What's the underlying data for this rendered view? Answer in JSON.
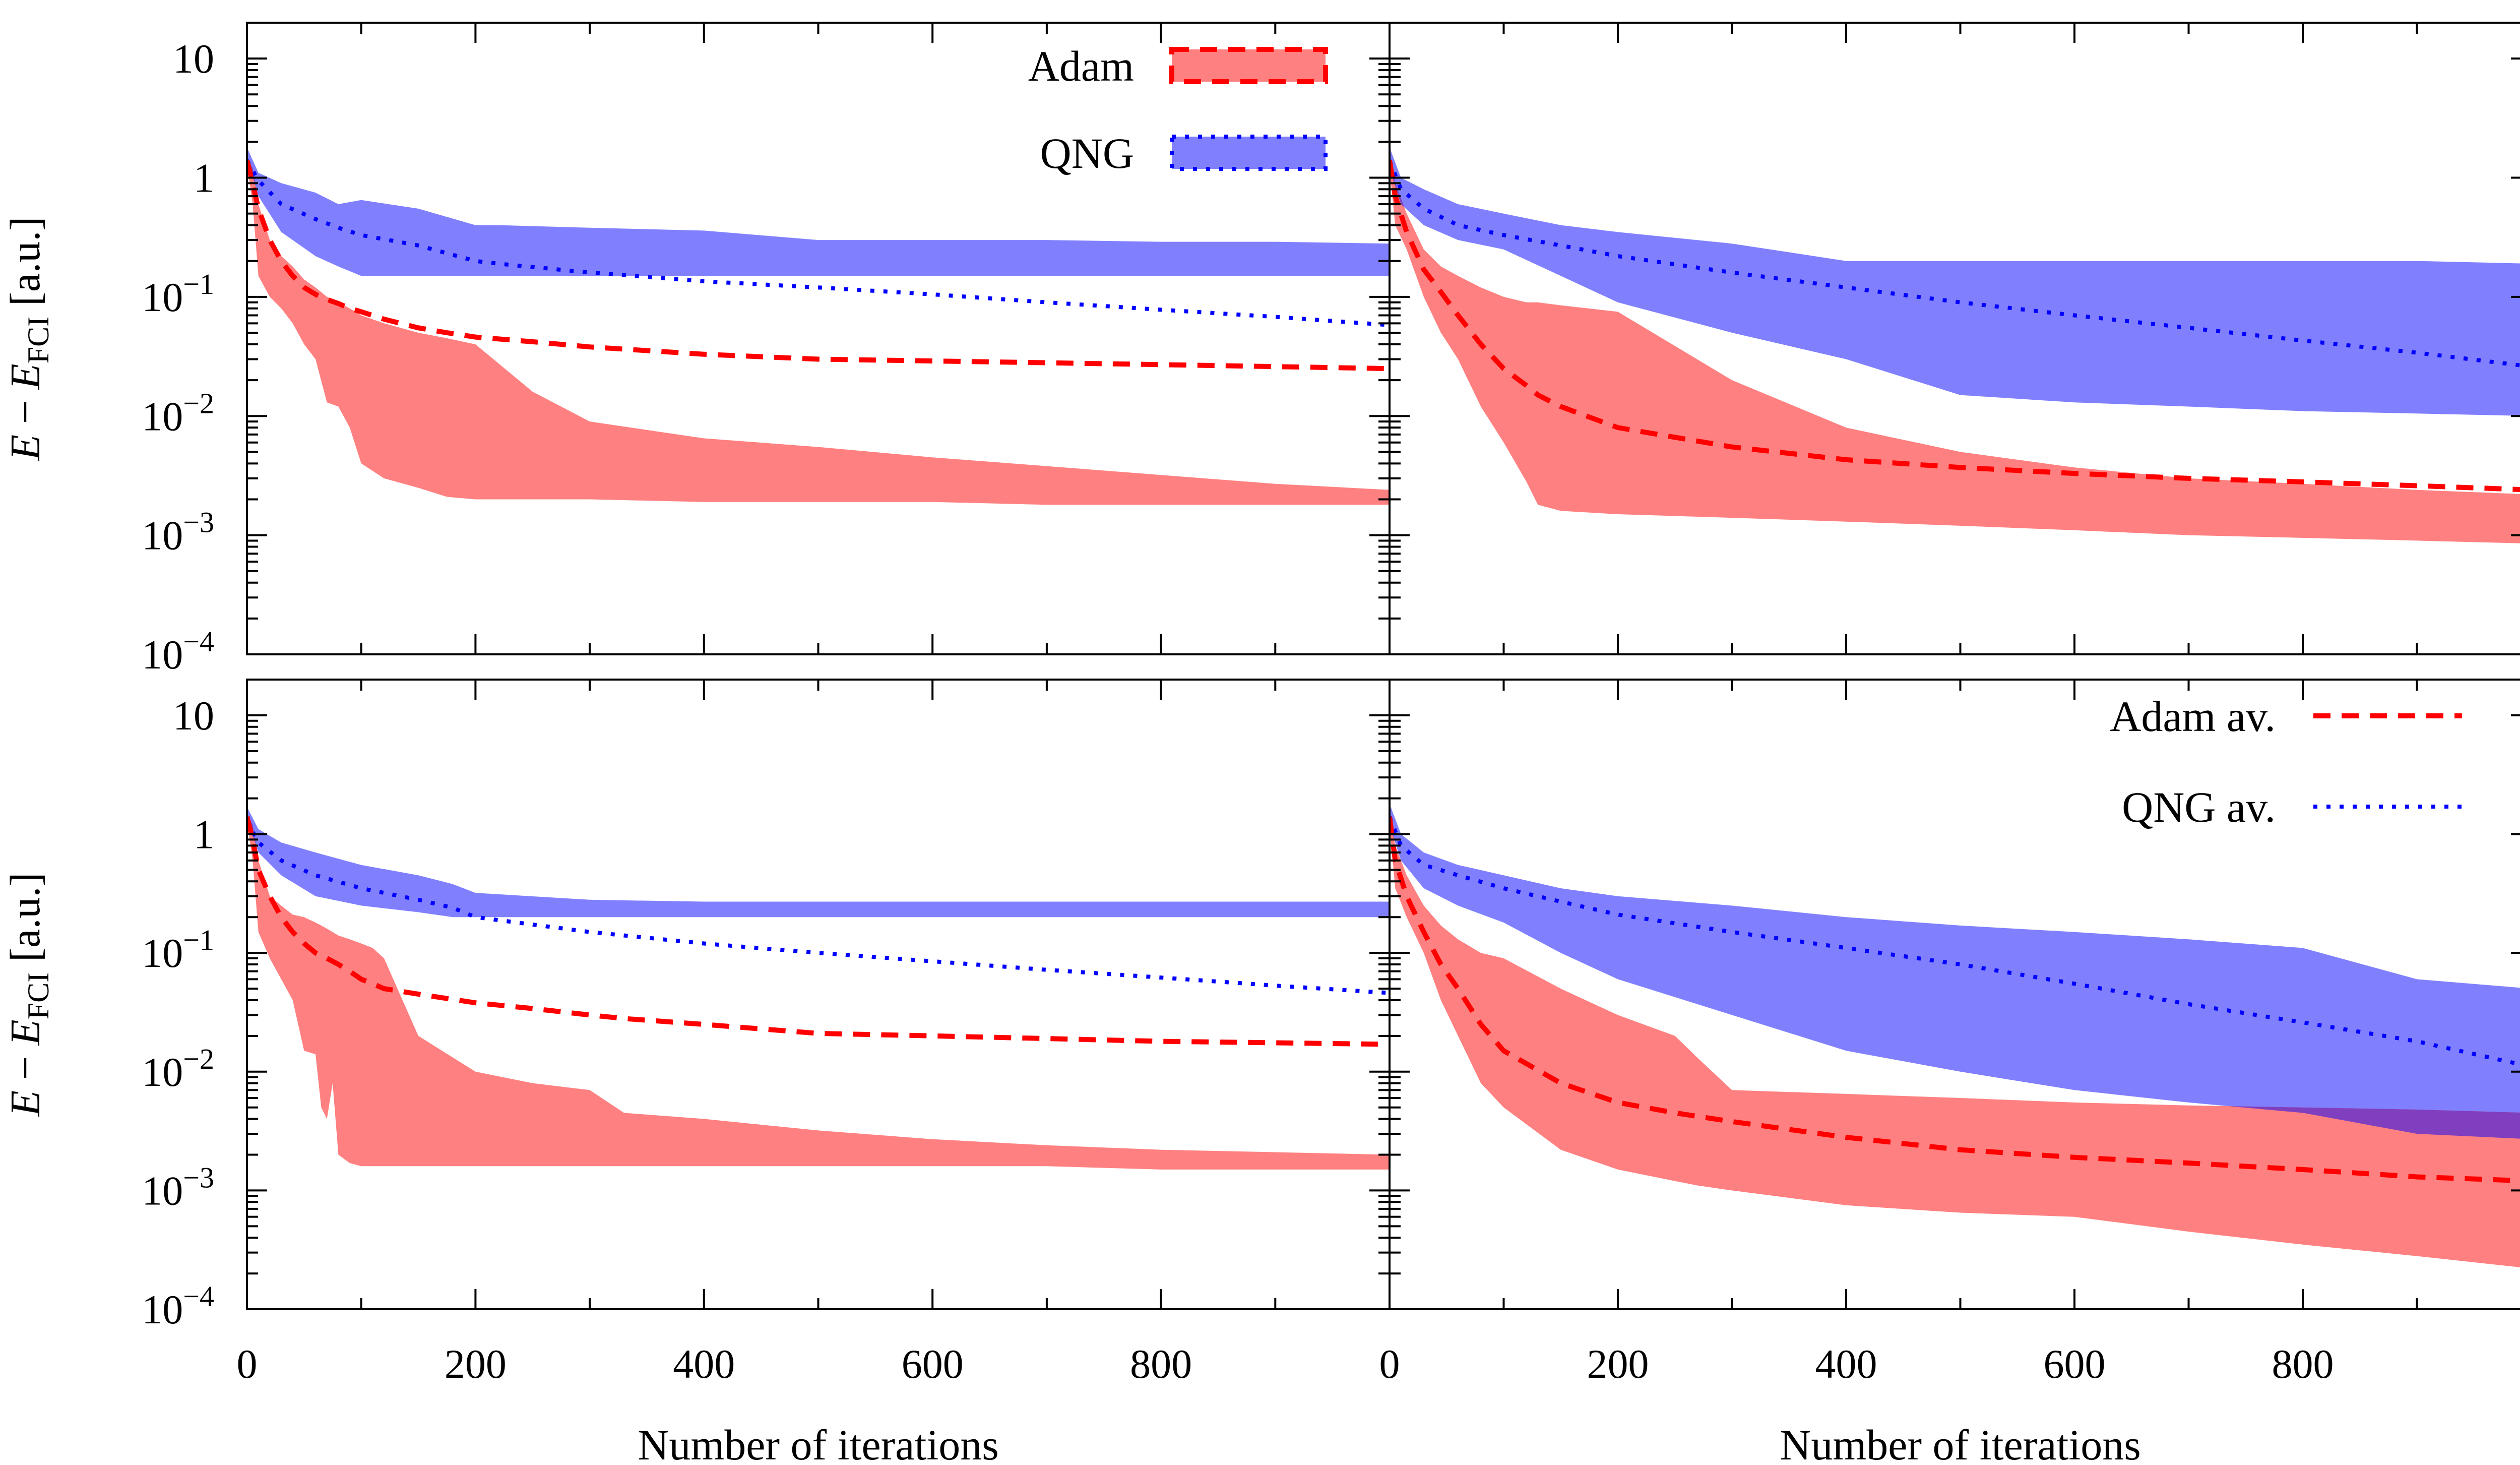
{
  "colors": {
    "adam": "#ff0000",
    "adam_band": "#ff8080",
    "qng": "#0000ff",
    "qng_band": "#8080ff",
    "overlap": "#7f3fbf",
    "axis": "#000000"
  },
  "chart_data": {
    "type": "area",
    "layout": "2x2 panels with shared axes",
    "xlabel": "Number of iterations",
    "ylabel": "E − E_FCI [a.u.]",
    "ylabel_parts": {
      "E": "E",
      "minus": " − ",
      "sub_E": "E",
      "sub": "FCI",
      "unit": " [a.u.]"
    },
    "yscale": "log",
    "ylim": [
      0.0001,
      20
    ],
    "xlim": [
      0,
      1000
    ],
    "x_ticks": [
      0,
      200,
      400,
      600,
      800
    ],
    "x_tick_labels": [
      "0",
      "200",
      "400",
      "600",
      "800"
    ],
    "y_ticks": [
      {
        "value": 10,
        "base": "10",
        "exp": ""
      },
      {
        "value": 1,
        "base": "1",
        "exp": ""
      },
      {
        "value": 0.1,
        "base": "10",
        "exp": "−1"
      },
      {
        "value": 0.01,
        "base": "10",
        "exp": "−2"
      },
      {
        "value": 0.001,
        "base": "10",
        "exp": "−3"
      },
      {
        "value": 0.0001,
        "base": "10",
        "exp": "−4"
      }
    ],
    "legends": [
      {
        "panel": 0,
        "placement": "top-right",
        "style": "band",
        "entries": [
          "Adam",
          "QNG"
        ]
      },
      {
        "panel": 3,
        "placement": "top-right",
        "style": "line",
        "entries": [
          "Adam av.",
          "QNG av."
        ]
      }
    ],
    "panels": [
      {
        "position": "top-left",
        "series": [
          {
            "name": "QNG",
            "x": [
              0,
              10,
              30,
              60,
              80,
              100,
              150,
              200,
              220,
              300,
              400,
              500,
              600,
              700,
              800,
              900,
              1000
            ],
            "upper": [
              1.8,
              1.1,
              0.9,
              0.75,
              0.6,
              0.65,
              0.55,
              0.4,
              0.4,
              0.38,
              0.36,
              0.3,
              0.3,
              0.3,
              0.29,
              0.29,
              0.28
            ],
            "lower": [
              1.5,
              0.7,
              0.35,
              0.22,
              0.18,
              0.15,
              0.15,
              0.15,
              0.15,
              0.15,
              0.15,
              0.15,
              0.15,
              0.15,
              0.15,
              0.15,
              0.15
            ],
            "mean": [
              1.4,
              0.95,
              0.6,
              0.45,
              0.38,
              0.33,
              0.27,
              0.2,
              0.19,
              0.16,
              0.135,
              0.12,
              0.105,
              0.09,
              0.078,
              0.068,
              0.058
            ]
          },
          {
            "name": "Adam",
            "x": [
              0,
              5,
              10,
              20,
              30,
              40,
              50,
              60,
              70,
              80,
              90,
              100,
              120,
              150,
              175,
              200,
              250,
              300,
              400,
              500,
              600,
              700,
              800,
              900,
              1000
            ],
            "upper": [
              1.5,
              1.2,
              0.6,
              0.3,
              0.22,
              0.18,
              0.14,
              0.12,
              0.1,
              0.09,
              0.08,
              0.07,
              0.06,
              0.05,
              0.045,
              0.04,
              0.016,
              0.009,
              0.0065,
              0.0055,
              0.0045,
              0.0038,
              0.0032,
              0.0027,
              0.0024
            ],
            "lower": [
              1.3,
              0.6,
              0.15,
              0.1,
              0.08,
              0.06,
              0.04,
              0.03,
              0.013,
              0.012,
              0.008,
              0.004,
              0.003,
              0.0025,
              0.0021,
              0.002,
              0.002,
              0.002,
              0.0019,
              0.0019,
              0.0019,
              0.0018,
              0.0018,
              0.0018,
              0.0018
            ],
            "mean": [
              1.4,
              0.9,
              0.55,
              0.3,
              0.2,
              0.15,
              0.12,
              0.105,
              0.095,
              0.088,
              0.08,
              0.075,
              0.065,
              0.055,
              0.05,
              0.046,
              0.042,
              0.038,
              0.033,
              0.03,
              0.029,
              0.028,
              0.027,
              0.026,
              0.025
            ]
          }
        ]
      },
      {
        "position": "top-right",
        "series": [
          {
            "name": "QNG",
            "x": [
              0,
              10,
              30,
              60,
              100,
              150,
              200,
              300,
              400,
              500,
              600,
              700,
              800,
              900,
              1000
            ],
            "upper": [
              1.8,
              1.0,
              0.8,
              0.6,
              0.5,
              0.4,
              0.35,
              0.28,
              0.2,
              0.2,
              0.2,
              0.2,
              0.2,
              0.2,
              0.19
            ],
            "lower": [
              1.2,
              0.6,
              0.4,
              0.3,
              0.25,
              0.15,
              0.09,
              0.05,
              0.03,
              0.015,
              0.013,
              0.012,
              0.011,
              0.0105,
              0.01
            ],
            "mean": [
              1.4,
              0.8,
              0.55,
              0.4,
              0.33,
              0.27,
              0.22,
              0.16,
              0.12,
              0.09,
              0.07,
              0.055,
              0.043,
              0.034,
              0.026
            ]
          },
          {
            "name": "Adam",
            "x": [
              0,
              5,
              15,
              30,
              45,
              60,
              80,
              100,
              120,
              130,
              150,
              200,
              300,
              400,
              500,
              600,
              700,
              800,
              900,
              1000
            ],
            "upper": [
              1.6,
              0.9,
              0.5,
              0.25,
              0.18,
              0.15,
              0.12,
              0.1,
              0.09,
              0.09,
              0.085,
              0.075,
              0.02,
              0.008,
              0.005,
              0.0037,
              0.003,
              0.0027,
              0.0024,
              0.0022
            ],
            "lower": [
              1.2,
              0.4,
              0.25,
              0.1,
              0.05,
              0.03,
              0.012,
              0.006,
              0.0028,
              0.0018,
              0.0016,
              0.0015,
              0.0014,
              0.0013,
              0.0012,
              0.0011,
              0.001,
              0.00095,
              0.0009,
              0.00085
            ],
            "mean": [
              1.4,
              0.7,
              0.35,
              0.17,
              0.11,
              0.07,
              0.04,
              0.025,
              0.018,
              0.015,
              0.012,
              0.008,
              0.0055,
              0.0043,
              0.0037,
              0.0033,
              0.003,
              0.0028,
              0.0026,
              0.0024
            ]
          }
        ]
      },
      {
        "position": "bottom-left",
        "series": [
          {
            "name": "QNG",
            "x": [
              0,
              10,
              30,
              60,
              100,
              150,
              180,
              200,
              300,
              400,
              500,
              600,
              700,
              800,
              900,
              1000
            ],
            "upper": [
              1.7,
              1.1,
              0.85,
              0.7,
              0.55,
              0.45,
              0.38,
              0.32,
              0.28,
              0.27,
              0.27,
              0.27,
              0.27,
              0.27,
              0.27,
              0.27
            ],
            "lower": [
              1.4,
              0.7,
              0.45,
              0.3,
              0.25,
              0.22,
              0.2,
              0.2,
              0.2,
              0.2,
              0.2,
              0.2,
              0.2,
              0.2,
              0.2,
              0.2
            ],
            "mean": [
              1.3,
              0.85,
              0.6,
              0.45,
              0.35,
              0.28,
              0.24,
              0.2,
              0.15,
              0.12,
              0.1,
              0.085,
              0.072,
              0.062,
              0.053,
              0.046
            ]
          },
          {
            "name": "Adam",
            "x": [
              0,
              5,
              10,
              20,
              30,
              40,
              50,
              60,
              65,
              70,
              75,
              80,
              90,
              100,
              110,
              120,
              150,
              200,
              250,
              300,
              330,
              400,
              500,
              600,
              700,
              800,
              900,
              1000
            ],
            "upper": [
              1.5,
              1.2,
              0.6,
              0.3,
              0.25,
              0.21,
              0.2,
              0.18,
              0.17,
              0.16,
              0.15,
              0.14,
              0.13,
              0.12,
              0.11,
              0.09,
              0.02,
              0.01,
              0.008,
              0.007,
              0.0045,
              0.004,
              0.0032,
              0.0027,
              0.0024,
              0.0022,
              0.0021,
              0.002
            ],
            "lower": [
              1.3,
              0.6,
              0.15,
              0.09,
              0.06,
              0.04,
              0.015,
              0.014,
              0.005,
              0.004,
              0.008,
              0.002,
              0.0017,
              0.0016,
              0.0016,
              0.0016,
              0.0016,
              0.0016,
              0.0016,
              0.0016,
              0.0016,
              0.0016,
              0.0016,
              0.0016,
              0.0016,
              0.0015,
              0.0015,
              0.0015
            ],
            "mean": [
              1.4,
              0.9,
              0.5,
              0.3,
              0.2,
              0.15,
              0.12,
              0.1,
              0.095,
              0.09,
              0.085,
              0.08,
              0.07,
              0.06,
              0.055,
              0.05,
              0.045,
              0.038,
              0.034,
              0.03,
              0.028,
              0.025,
              0.021,
              0.02,
              0.019,
              0.018,
              0.0175,
              0.017
            ]
          }
        ]
      },
      {
        "position": "bottom-right",
        "series": [
          {
            "name": "QNG",
            "x": [
              0,
              10,
              30,
              60,
              100,
              150,
              200,
              300,
              400,
              500,
              600,
              700,
              800,
              900,
              1000
            ],
            "upper": [
              1.8,
              1.0,
              0.7,
              0.55,
              0.45,
              0.35,
              0.3,
              0.25,
              0.2,
              0.17,
              0.15,
              0.13,
              0.11,
              0.06,
              0.05
            ],
            "lower": [
              1.2,
              0.6,
              0.35,
              0.25,
              0.18,
              0.1,
              0.06,
              0.03,
              0.015,
              0.01,
              0.007,
              0.0055,
              0.0045,
              0.003,
              0.0027
            ],
            "mean": [
              1.4,
              0.8,
              0.55,
              0.45,
              0.35,
              0.27,
              0.21,
              0.15,
              0.11,
              0.08,
              0.055,
              0.037,
              0.026,
              0.018,
              0.011
            ]
          },
          {
            "name": "Adam",
            "x": [
              0,
              5,
              15,
              30,
              45,
              60,
              80,
              100,
              150,
              200,
              250,
              270,
              300,
              400,
              500,
              600,
              700,
              800,
              900,
              1000
            ],
            "upper": [
              1.6,
              0.8,
              0.45,
              0.25,
              0.17,
              0.13,
              0.1,
              0.09,
              0.05,
              0.03,
              0.02,
              0.013,
              0.007,
              0.0065,
              0.006,
              0.0055,
              0.0052,
              0.005,
              0.0048,
              0.0045
            ],
            "lower": [
              1.2,
              0.35,
              0.2,
              0.1,
              0.04,
              0.02,
              0.008,
              0.005,
              0.0022,
              0.0015,
              0.0012,
              0.0011,
              0.001,
              0.00075,
              0.00065,
              0.0006,
              0.00045,
              0.00035,
              0.00028,
              0.00022
            ],
            "mean": [
              1.4,
              0.6,
              0.3,
              0.15,
              0.08,
              0.05,
              0.025,
              0.015,
              0.008,
              0.0055,
              0.0045,
              0.0042,
              0.0038,
              0.0028,
              0.0022,
              0.0019,
              0.0017,
              0.0015,
              0.0013,
              0.0012
            ]
          }
        ]
      }
    ]
  }
}
